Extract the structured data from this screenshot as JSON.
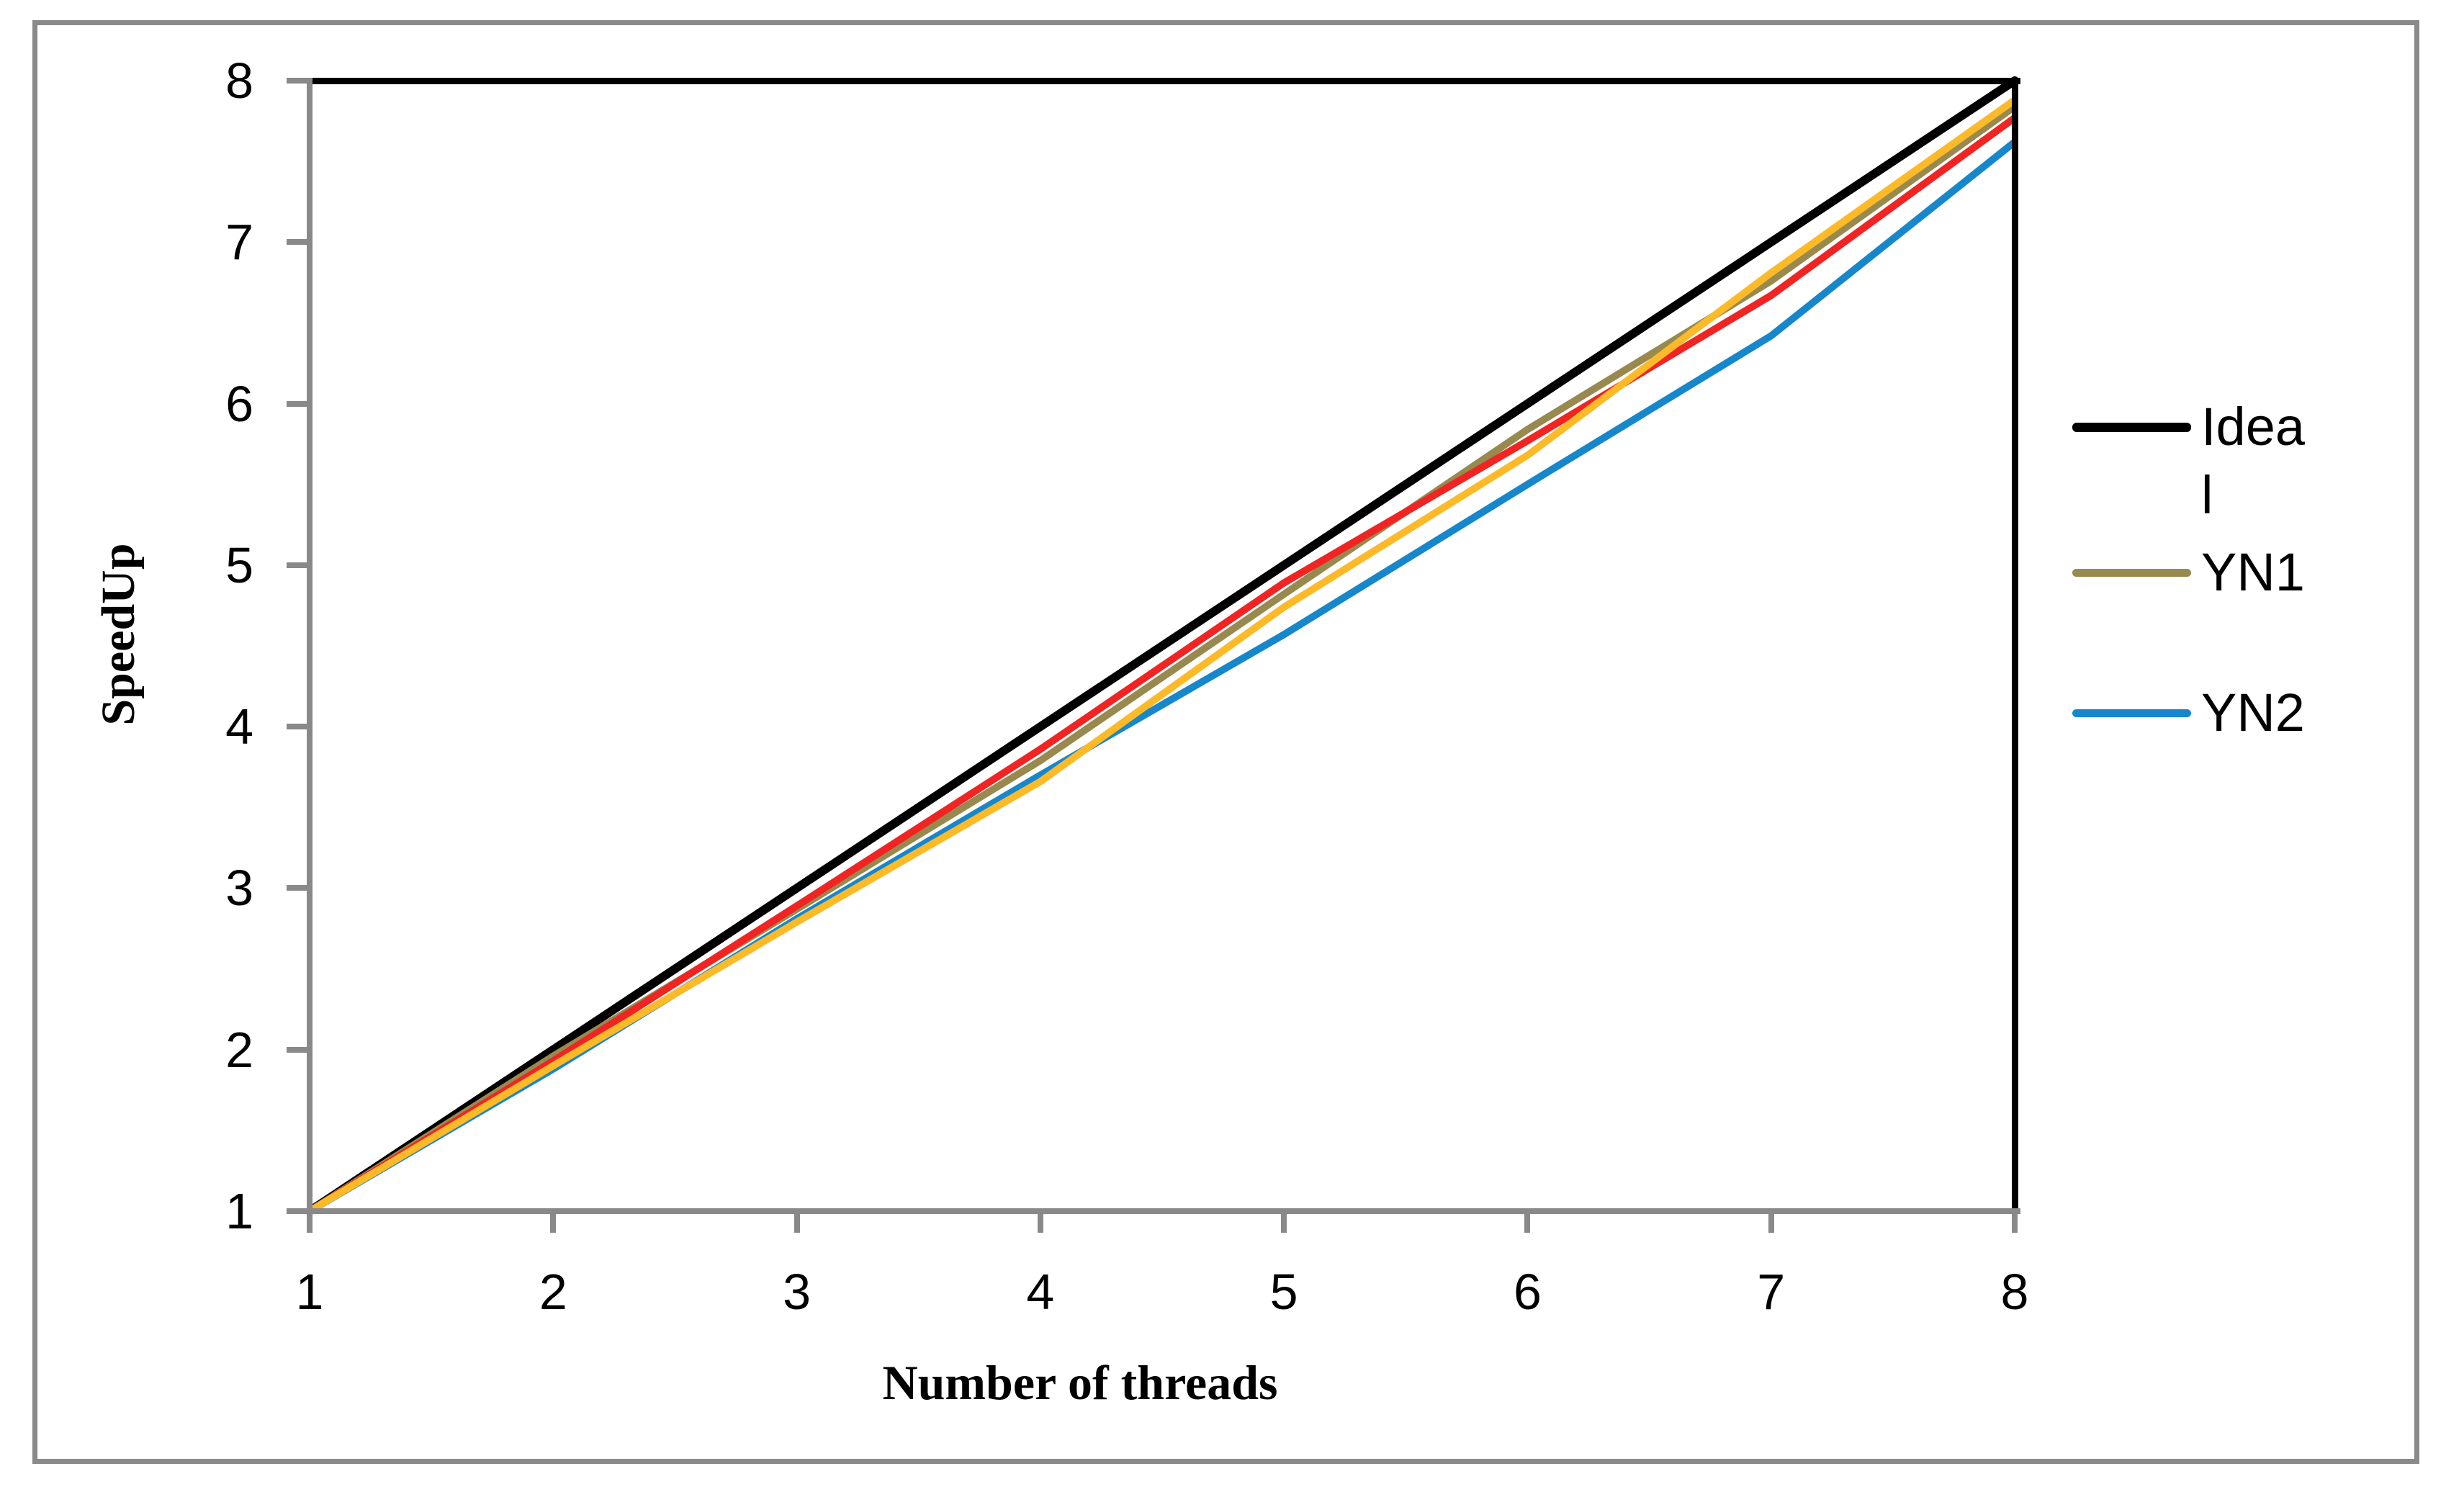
{
  "figure": {
    "background": "#FFFFFF",
    "border_color": "#8A8A8A",
    "axis_color": "#898989",
    "plot_border_color": "#000000"
  },
  "chart_data": {
    "type": "line",
    "title": "",
    "xlabel": "Number of threads",
    "ylabel": "SpeedUp",
    "x": [
      1,
      2,
      3,
      4,
      5,
      6,
      7,
      8
    ],
    "xlim": [
      1,
      8
    ],
    "ylim": [
      1,
      8
    ],
    "xticks": [
      1,
      2,
      3,
      4,
      5,
      6,
      7,
      8
    ],
    "yticks": [
      1,
      2,
      3,
      4,
      5,
      6,
      7,
      8
    ],
    "grid": "off",
    "legend_position": "right-outside",
    "series": [
      {
        "name": "Ideal",
        "color": "#000000",
        "line_width": 12,
        "values": [
          1,
          2,
          3,
          4,
          5,
          6,
          7,
          8
        ],
        "in_legend": true,
        "legend_label_lines": [
          "Idea",
          "l"
        ]
      },
      {
        "name": "YN1",
        "color": "#98894F",
        "line_width": 10,
        "values": [
          1,
          1.96,
          2.87,
          3.79,
          4.82,
          5.84,
          6.76,
          7.84
        ],
        "in_legend": true,
        "legend_label_lines": [
          "YN1"
        ]
      },
      {
        "name": "YN2",
        "color": "#1787CB",
        "line_width": 10,
        "values": [
          1,
          1.88,
          2.81,
          3.7,
          4.57,
          5.5,
          6.42,
          7.62
        ],
        "in_legend": true,
        "legend_label_lines": [
          "YN2"
        ]
      },
      {
        "name": "unlabeled-red",
        "color": "#F02423",
        "line_width": 10,
        "values": [
          1,
          1.93,
          2.89,
          3.86,
          4.89,
          5.77,
          6.67,
          7.77
        ],
        "in_legend": false
      },
      {
        "name": "unlabeled-gold",
        "color": "#FCBA29",
        "line_width": 10,
        "values": [
          1,
          1.9,
          2.79,
          3.66,
          4.74,
          5.68,
          6.81,
          7.88
        ],
        "in_legend": false
      }
    ]
  }
}
